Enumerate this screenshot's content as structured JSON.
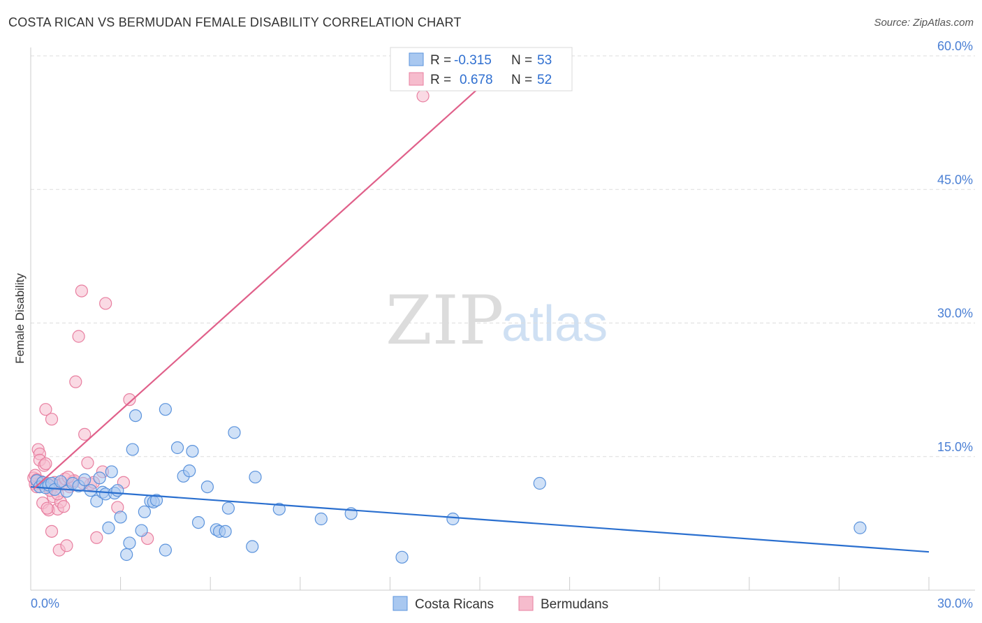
{
  "title": "COSTA RICAN VS BERMUDAN FEMALE DISABILITY CORRELATION CHART",
  "source": "Source: ZipAtlas.com",
  "watermark": {
    "zip": "ZIP",
    "atlas": "atlas"
  },
  "colors": {
    "costa_fill": "#a9c8f0",
    "costa_stroke": "#5b93dc",
    "costa_line": "#2a6fcf",
    "berm_fill": "#f6bccd",
    "berm_stroke": "#e87fa0",
    "berm_line": "#e0608a",
    "tick": "#4a7fd4",
    "grid": "#dddddd"
  },
  "legend": {
    "r_label": "R =",
    "n_label": "N =",
    "rows": [
      {
        "series": "Costa Ricans",
        "r": "-0.315",
        "n": "53"
      },
      {
        "series": "Bermudans",
        "r": "0.678",
        "n": "52"
      }
    ]
  },
  "chart_data": {
    "type": "scatter",
    "title": "COSTA RICAN VS BERMUDAN FEMALE DISABILITY CORRELATION CHART",
    "xlabel": "",
    "ylabel": "Female Disability",
    "xlim": [
      0,
      30
    ],
    "ylim": [
      0,
      60
    ],
    "x_tick_labels": [
      "0.0%",
      "30.0%"
    ],
    "y_ticks": [
      15,
      30,
      45,
      60
    ],
    "y_tick_labels": [
      "15.0%",
      "30.0%",
      "45.0%",
      "60.0%"
    ],
    "grid": true,
    "legend_position": "top-center",
    "series": [
      {
        "name": "Costa Ricans",
        "trend": {
          "x": [
            0,
            30
          ],
          "y": [
            11.6,
            4.3
          ]
        },
        "points": [
          [
            0.2,
            12.3
          ],
          [
            0.3,
            11.6
          ],
          [
            0.4,
            12.1
          ],
          [
            0.5,
            11.5
          ],
          [
            0.6,
            11.8
          ],
          [
            0.7,
            12.0
          ],
          [
            0.8,
            11.3
          ],
          [
            1.0,
            12.2
          ],
          [
            1.2,
            11.1
          ],
          [
            1.4,
            12.0
          ],
          [
            1.6,
            11.7
          ],
          [
            1.8,
            12.4
          ],
          [
            2.0,
            11.2
          ],
          [
            2.2,
            10.0
          ],
          [
            2.3,
            12.6
          ],
          [
            2.4,
            11.0
          ],
          [
            2.5,
            10.8
          ],
          [
            2.6,
            7.0
          ],
          [
            2.7,
            13.3
          ],
          [
            2.8,
            10.9
          ],
          [
            2.9,
            11.2
          ],
          [
            3.0,
            8.2
          ],
          [
            3.2,
            4.0
          ],
          [
            3.3,
            5.3
          ],
          [
            3.5,
            19.6
          ],
          [
            3.4,
            15.8
          ],
          [
            3.7,
            6.7
          ],
          [
            3.8,
            8.8
          ],
          [
            4.0,
            10.0
          ],
          [
            4.1,
            9.9
          ],
          [
            4.2,
            10.1
          ],
          [
            4.5,
            4.5
          ],
          [
            4.5,
            20.3
          ],
          [
            4.9,
            16.0
          ],
          [
            5.1,
            12.8
          ],
          [
            5.3,
            13.4
          ],
          [
            5.4,
            15.6
          ],
          [
            5.6,
            7.6
          ],
          [
            5.9,
            11.6
          ],
          [
            6.2,
            6.8
          ],
          [
            6.3,
            6.6
          ],
          [
            6.5,
            6.6
          ],
          [
            6.6,
            9.2
          ],
          [
            6.8,
            17.7
          ],
          [
            7.4,
            4.9
          ],
          [
            7.5,
            12.7
          ],
          [
            8.3,
            9.1
          ],
          [
            9.7,
            8.0
          ],
          [
            10.7,
            8.6
          ],
          [
            12.4,
            3.7
          ],
          [
            14.1,
            8.0
          ],
          [
            17.0,
            12.0
          ],
          [
            27.7,
            7.0
          ]
        ]
      },
      {
        "name": "Bermudans",
        "trend": {
          "x": [
            0.1,
            15
          ],
          "y": [
            11.4,
            56.5
          ]
        },
        "points": [
          [
            0.1,
            12.6
          ],
          [
            0.15,
            11.9
          ],
          [
            0.2,
            11.6
          ],
          [
            0.25,
            15.8
          ],
          [
            0.3,
            15.3
          ],
          [
            0.3,
            14.6
          ],
          [
            0.35,
            12.2
          ],
          [
            0.4,
            9.8
          ],
          [
            0.45,
            14.0
          ],
          [
            0.5,
            14.2
          ],
          [
            0.5,
            20.3
          ],
          [
            0.55,
            12.0
          ],
          [
            0.6,
            11.6
          ],
          [
            0.6,
            9.0
          ],
          [
            0.7,
            19.2
          ],
          [
            0.7,
            6.6
          ],
          [
            0.75,
            10.5
          ],
          [
            0.8,
            12.1
          ],
          [
            0.85,
            11.8
          ],
          [
            0.9,
            9.1
          ],
          [
            0.95,
            4.5
          ],
          [
            1.0,
            9.9
          ],
          [
            1.05,
            11.9
          ],
          [
            1.1,
            9.4
          ],
          [
            1.2,
            5.0
          ],
          [
            1.3,
            11.6
          ],
          [
            1.4,
            12.2
          ],
          [
            1.5,
            23.4
          ],
          [
            1.6,
            28.5
          ],
          [
            1.7,
            33.6
          ],
          [
            1.8,
            17.5
          ],
          [
            1.9,
            14.3
          ],
          [
            2.0,
            11.9
          ],
          [
            2.1,
            12.1
          ],
          [
            2.2,
            5.9
          ],
          [
            2.4,
            13.3
          ],
          [
            2.5,
            32.2
          ],
          [
            2.9,
            9.3
          ],
          [
            3.1,
            12.1
          ],
          [
            3.3,
            21.4
          ],
          [
            3.9,
            5.8
          ],
          [
            0.35,
            12.0
          ],
          [
            0.65,
            11.2
          ],
          [
            0.9,
            10.8
          ],
          [
            1.15,
            12.5
          ],
          [
            1.45,
            12.3
          ],
          [
            0.15,
            12.9
          ],
          [
            0.2,
            12.4
          ],
          [
            0.55,
            9.2
          ],
          [
            1.75,
            12.0
          ],
          [
            1.25,
            12.7
          ],
          [
            13.1,
            55.5
          ]
        ]
      }
    ]
  }
}
